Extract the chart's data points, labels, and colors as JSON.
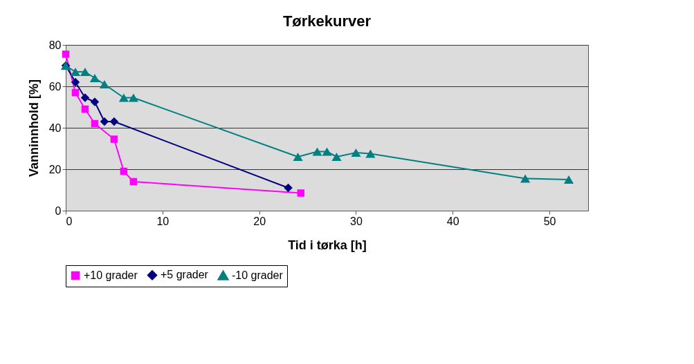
{
  "chart_data": {
    "type": "line",
    "title": "Tørkekurver",
    "xlabel": "Tid i tørka [h]",
    "ylabel": "Vanninnhold [%]",
    "xlim": [
      0,
      54
    ],
    "xticks": [
      0,
      10,
      20,
      30,
      40,
      50
    ],
    "ylim": [
      0,
      80
    ],
    "yticks": [
      0,
      20,
      40,
      60,
      80
    ],
    "grid": "y",
    "legend": "bottom",
    "series": [
      {
        "name": "+10 grader",
        "color": "#ff00ff",
        "marker": "square",
        "x": [
          0,
          1,
          2,
          3,
          5,
          6,
          7,
          24.3
        ],
        "values": [
          75.5,
          57,
          49,
          42,
          34.5,
          19,
          14,
          8.5
        ]
      },
      {
        "name": "+5 grader",
        "color": "#000080",
        "marker": "diamond",
        "x": [
          0,
          1,
          2,
          3,
          4,
          5,
          23
        ],
        "values": [
          70,
          62,
          54.5,
          52.5,
          43,
          43,
          11
        ]
      },
      {
        "name": "-10 grader",
        "color": "#008080",
        "marker": "triangle",
        "x": [
          0,
          1,
          2,
          3,
          4,
          6,
          7,
          24,
          26,
          27,
          28,
          30,
          31.5,
          47.5,
          52
        ],
        "values": [
          70,
          67,
          67,
          64,
          61,
          54.5,
          54.5,
          26,
          28.5,
          28.5,
          26,
          28,
          27.5,
          15.5,
          15
        ]
      }
    ]
  }
}
